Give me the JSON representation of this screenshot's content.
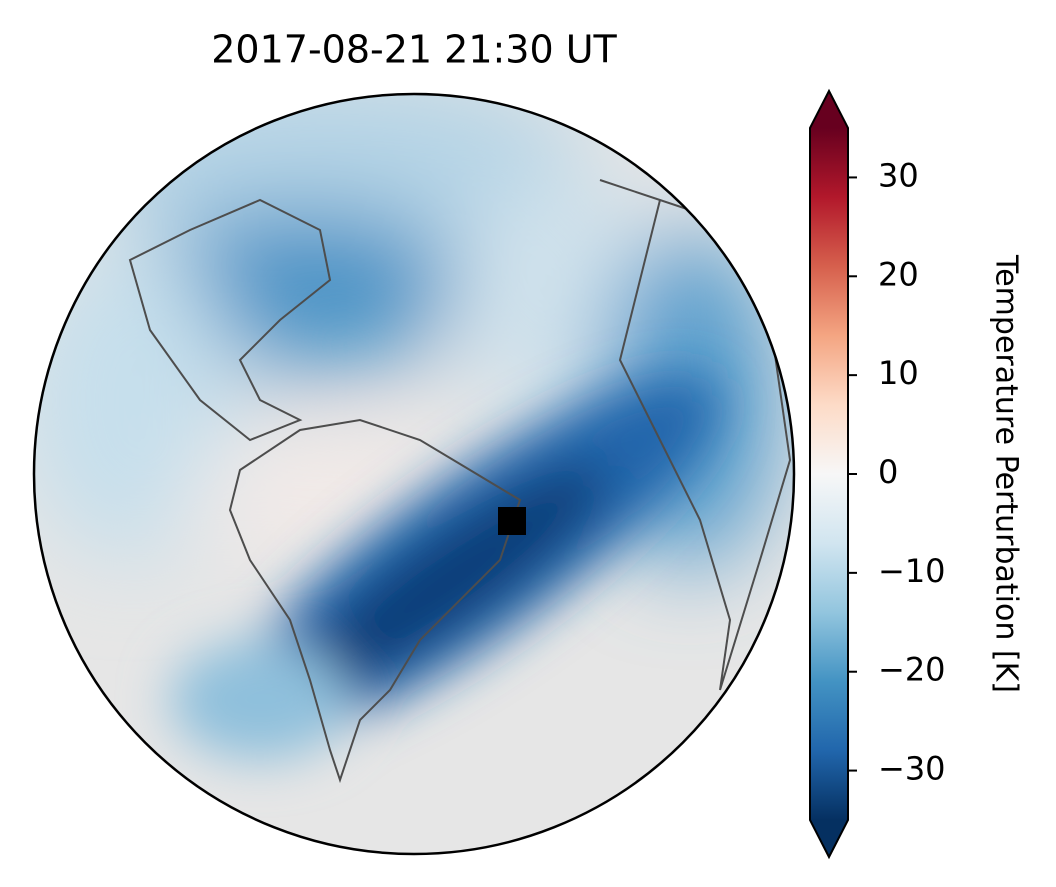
{
  "title": "2017-08-21  21:30 UT",
  "colorbar": {
    "label": "Temperature Perturbation [K]",
    "lim": [
      -35,
      35
    ],
    "ticks": [
      {
        "value": -30,
        "label": "−30"
      },
      {
        "value": -20,
        "label": "−20"
      },
      {
        "value": -10,
        "label": "−10"
      },
      0,
      10,
      20,
      30
    ],
    "colors": [
      "#053061",
      "#2166ac",
      "#4393c3",
      "#92c5de",
      "#d1e5f0",
      "#f7f7f7",
      "#fddbc7",
      "#f4a582",
      "#d6604d",
      "#b2182b",
      "#67001f"
    ]
  }
}
